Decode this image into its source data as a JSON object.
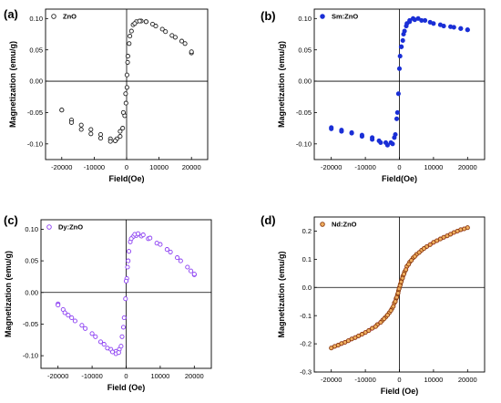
{
  "chart_data": [
    {
      "type": "scatter",
      "panel": "(a)",
      "xlabel": "Field(Oe)",
      "ylabel": "Magnetization (emu/g)",
      "xlim": [
        -25000,
        25000
      ],
      "ylim": [
        -0.125,
        0.115
      ],
      "xticks": [
        -20000,
        -10000,
        0,
        10000,
        20000
      ],
      "yticks": [
        -0.1,
        -0.05,
        0.0,
        0.05,
        0.1
      ],
      "ytick_labels": [
        "-0.10",
        "-0.05",
        "0.00",
        "0.05",
        "0.10"
      ],
      "series": [
        {
          "name": "ZnO",
          "color": "#222222",
          "marker_fill": "#ffffff",
          "branches": [
            {
              "x": [
                -20000,
                -17000,
                -14000,
                -11000,
                -8000,
                -5000,
                -3000,
                -2000,
                -1200,
                -600,
                -200,
                100,
                400,
                1000,
                2000,
                3000,
                4500,
                6000,
                8000,
                11000,
                14000,
                17000,
                20000
              ],
              "y": [
                -0.046,
                -0.062,
                -0.07,
                -0.077,
                -0.085,
                -0.092,
                -0.092,
                -0.088,
                -0.075,
                -0.055,
                -0.035,
                -0.01,
                0.04,
                0.072,
                0.09,
                0.095,
                0.096,
                0.095,
                0.091,
                0.083,
                0.073,
                0.064,
                0.045
              ]
            },
            {
              "x": [
                -20000,
                -17000,
                -14000,
                -11000,
                -8000,
                -5000,
                -3500,
                -2000,
                -1000,
                -300,
                100,
                300,
                800,
                1500,
                2500,
                4000,
                6000,
                9000,
                12000,
                15000,
                18000,
                20000
              ],
              "y": [
                -0.046,
                -0.066,
                -0.077,
                -0.084,
                -0.091,
                -0.096,
                -0.095,
                -0.08,
                -0.05,
                -0.02,
                0.01,
                0.03,
                0.06,
                0.08,
                0.092,
                0.096,
                0.095,
                0.088,
                0.079,
                0.07,
                0.06,
                0.047
              ]
            }
          ]
        }
      ]
    },
    {
      "type": "scatter",
      "panel": "(b)",
      "xlabel": "Field(Oe)",
      "ylabel": "Magnetization (emu/g)",
      "xlim": [
        -25000,
        25000
      ],
      "ylim": [
        -0.125,
        0.115
      ],
      "xticks": [
        -20000,
        -10000,
        0,
        10000,
        20000
      ],
      "yticks": [
        -0.1,
        -0.05,
        0.0,
        0.05,
        0.1
      ],
      "ytick_labels": [
        "-0.10",
        "-0.05",
        "0.00",
        "0.05",
        "0.10"
      ],
      "series": [
        {
          "name": "Sm:ZnO",
          "color": "#1a2fd6",
          "marker_fill": "#1a2fd6",
          "branches": [
            {
              "x": [
                -20000,
                -17000,
                -14000,
                -11000,
                -8000,
                -6000,
                -4000,
                -2500,
                -1500,
                -800,
                -300,
                200,
                600,
                1000,
                1500,
                2200,
                3000,
                4000,
                5500,
                7500,
                10000,
                13000,
                16000,
                18000,
                20000
              ],
              "y": [
                -0.074,
                -0.078,
                -0.082,
                -0.086,
                -0.09,
                -0.095,
                -0.098,
                -0.098,
                -0.09,
                -0.06,
                -0.02,
                0.04,
                0.055,
                0.065,
                0.08,
                0.092,
                0.097,
                0.1,
                0.1,
                0.097,
                0.092,
                0.088,
                0.086,
                0.084,
                0.082
              ]
            },
            {
              "x": [
                -20000,
                -17000,
                -14000,
                -11000,
                -8000,
                -5500,
                -3500,
                -2000,
                -1200,
                -600,
                0,
                500,
                1200,
                2000,
                3000,
                4500,
                6500,
                9000,
                12000,
                15000,
                18000,
                20000
              ],
              "y": [
                -0.076,
                -0.08,
                -0.083,
                -0.088,
                -0.093,
                -0.098,
                -0.102,
                -0.1,
                -0.085,
                -0.05,
                0.02,
                0.055,
                0.075,
                0.088,
                0.095,
                0.098,
                0.097,
                0.094,
                0.09,
                0.087,
                0.084,
                0.082
              ]
            }
          ]
        }
      ]
    },
    {
      "type": "scatter",
      "panel": "(c)",
      "xlabel": "Field (Oe)",
      "ylabel": "Magnetization (emu/g)",
      "xlim": [
        -25000,
        25000
      ],
      "ylim": [
        -0.12,
        0.115
      ],
      "xticks": [
        -20000,
        -10000,
        0,
        10000,
        20000
      ],
      "yticks": [
        -0.1,
        -0.05,
        0.0,
        0.05,
        0.1
      ],
      "ytick_labels": [
        "-0.10",
        "-0.05",
        "0.00",
        "0.05",
        "0.10"
      ],
      "series": [
        {
          "name": "Dy:ZnO",
          "color": "#8a3cf2",
          "marker_fill": "#ffffff",
          "branches": [
            {
              "x": [
                -20000,
                -18500,
                -17000,
                -15000,
                -12000,
                -9000,
                -6500,
                -4500,
                -3000,
                -2000,
                -1200,
                -600,
                -200,
                200,
                600,
                1200,
                2000,
                3000,
                4500,
                6500,
                9000,
                12000,
                15000,
                18000,
                20000
              ],
              "y": [
                -0.018,
                -0.027,
                -0.036,
                -0.045,
                -0.057,
                -0.07,
                -0.082,
                -0.09,
                -0.093,
                -0.09,
                -0.07,
                -0.04,
                -0.01,
                0.022,
                0.05,
                0.08,
                0.088,
                0.09,
                0.089,
                0.085,
                0.078,
                0.068,
                0.055,
                0.04,
                0.028
              ]
            },
            {
              "x": [
                -20000,
                -18000,
                -16000,
                -13000,
                -10000,
                -7500,
                -5500,
                -4000,
                -3000,
                -2200,
                -1500,
                -800,
                0,
                400,
                800,
                1500,
                2500,
                3500,
                5000,
                7000,
                10000,
                13000,
                16000,
                19000,
                20000
              ],
              "y": [
                -0.02,
                -0.032,
                -0.04,
                -0.052,
                -0.065,
                -0.078,
                -0.088,
                -0.094,
                -0.097,
                -0.095,
                -0.085,
                -0.055,
                0.018,
                0.04,
                0.065,
                0.085,
                0.092,
                0.093,
                0.091,
                0.086,
                0.076,
                0.064,
                0.05,
                0.034,
                0.029
              ]
            }
          ]
        }
      ]
    },
    {
      "type": "scatter",
      "panel": "(d)",
      "xlabel": "Field (Oe)",
      "ylabel": "Magnetization (emu/g)",
      "xlim": [
        -25000,
        25000
      ],
      "ylim": [
        -0.3,
        0.25
      ],
      "xticks": [
        -20000,
        -10000,
        0,
        10000,
        20000
      ],
      "yticks": [
        -0.3,
        -0.2,
        -0.1,
        0.0,
        0.1,
        0.2
      ],
      "ytick_labels": [
        "-0.3",
        "-0.2",
        "-0.1",
        "0.0",
        "0.1",
        "0.2"
      ],
      "series": [
        {
          "name": "Nd:ZnO",
          "color": "#8b3a0f",
          "marker_fill": "#f0b060",
          "fit_color": "#ff33cc",
          "branches": [
            {
              "x": [
                -20000,
                -18000,
                -16000,
                -14000,
                -12000,
                -10000,
                -8000,
                -6500,
                -5000,
                -4000,
                -3000,
                -2200,
                -1500,
                -1000,
                -600,
                -300,
                0,
                300,
                600,
                1000,
                1500,
                2200,
                3000,
                4000,
                5000,
                6500,
                8000,
                10000,
                12000,
                14000,
                16000,
                18000,
                20000
              ],
              "y": [
                -0.215,
                -0.205,
                -0.195,
                -0.183,
                -0.172,
                -0.16,
                -0.145,
                -0.132,
                -0.117,
                -0.105,
                -0.09,
                -0.075,
                -0.055,
                -0.04,
                -0.025,
                -0.012,
                0.0,
                0.012,
                0.025,
                0.04,
                0.055,
                0.075,
                0.09,
                0.105,
                0.117,
                0.132,
                0.145,
                0.16,
                0.172,
                0.183,
                0.195,
                0.205,
                0.212
              ]
            },
            {
              "x": [
                -19000,
                -17000,
                -15000,
                -13000,
                -11000,
                -9000,
                -7000,
                -5500,
                -4500,
                -3500,
                -2500,
                -1800,
                -1200,
                -800,
                -400,
                -100,
                200,
                500,
                900,
                1300,
                1900,
                2700,
                3500,
                4500,
                5800,
                7200,
                9000,
                11000,
                13000,
                15000,
                17000,
                19000
              ],
              "y": [
                -0.209,
                -0.199,
                -0.189,
                -0.178,
                -0.166,
                -0.153,
                -0.139,
                -0.124,
                -0.111,
                -0.098,
                -0.082,
                -0.067,
                -0.05,
                -0.035,
                -0.02,
                -0.005,
                0.007,
                0.02,
                0.033,
                0.047,
                0.063,
                0.082,
                0.096,
                0.11,
                0.124,
                0.138,
                0.152,
                0.166,
                0.178,
                0.189,
                0.2,
                0.208
              ]
            }
          ]
        }
      ]
    }
  ]
}
